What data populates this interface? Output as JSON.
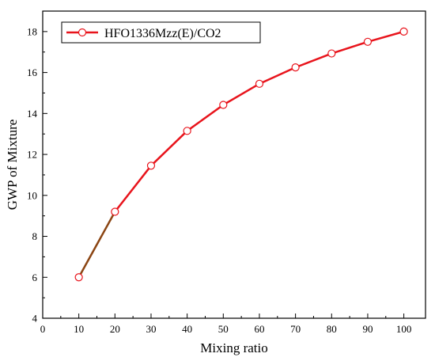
{
  "chart_data": {
    "type": "line",
    "x": [
      10,
      20,
      30,
      40,
      50,
      60,
      70,
      80,
      90,
      100
    ],
    "series": [
      {
        "name": "HFO1336Mzz(E)/CO2",
        "values": [
          6.0,
          9.2,
          11.45,
          13.15,
          14.42,
          15.45,
          16.25,
          16.93,
          17.5,
          18.0
        ]
      }
    ],
    "xlabel": "Mixing ratio",
    "ylabel": "GWP of Mixture",
    "xlim": [
      0,
      106
    ],
    "ylim": [
      4,
      19
    ],
    "xticks": [
      0,
      10,
      20,
      30,
      40,
      50,
      60,
      70,
      80,
      90,
      100
    ],
    "yticks": [
      4,
      6,
      8,
      10,
      12,
      14,
      16,
      18
    ],
    "grid": false,
    "legend_position": "top-left",
    "line_color": "#e8141c",
    "segment_color_first": "#8b4513",
    "marker_fill": "#ffffff",
    "marker_edge": "#e8141c"
  }
}
